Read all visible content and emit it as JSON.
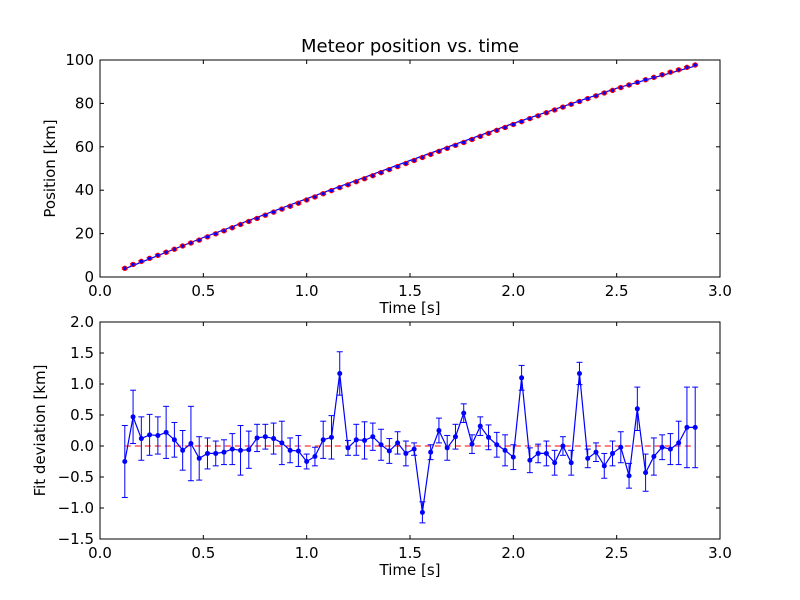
{
  "chart_data": [
    {
      "type": "scatter",
      "title": "Meteor position vs. time",
      "xlabel": "Time [s]",
      "ylabel": "Position [km]",
      "xlim": [
        0.0,
        3.0
      ],
      "ylim": [
        0,
        100
      ],
      "xticks": [
        "0.0",
        "0.5",
        "1.0",
        "1.5",
        "2.0",
        "2.5",
        "3.0"
      ],
      "yticks": [
        "0",
        "20",
        "40",
        "60",
        "80",
        "100"
      ],
      "grid": false,
      "legend": "none",
      "colors": {
        "data": "#ff0000",
        "fit": "#0000ff",
        "data_marker": "#0000ff"
      },
      "series": [
        {
          "kind": "data-with-errorbars",
          "x": [
            0.12,
            0.16,
            0.2,
            0.24,
            0.28,
            0.32,
            0.36,
            0.4,
            0.44,
            0.48,
            0.52,
            0.56,
            0.6,
            0.64,
            0.68,
            0.72,
            0.76,
            0.8,
            0.84,
            0.88,
            0.92,
            0.96,
            1.0,
            1.04,
            1.08,
            1.12,
            1.16,
            1.2,
            1.24,
            1.28,
            1.32,
            1.36,
            1.4,
            1.44,
            1.48,
            1.52,
            1.56,
            1.6,
            1.64,
            1.68,
            1.72,
            1.76,
            1.8,
            1.84,
            1.88,
            1.92,
            1.96,
            2.0,
            2.04,
            2.08,
            2.12,
            2.16,
            2.2,
            2.24,
            2.28,
            2.32,
            2.36,
            2.4,
            2.44,
            2.48,
            2.52,
            2.56,
            2.6,
            2.64,
            2.68,
            2.72,
            2.76,
            2.8,
            2.84,
            2.88
          ],
          "y": [
            4.0,
            5.8,
            7.2,
            8.6,
            10.0,
            11.4,
            12.8,
            14.3,
            15.7,
            17.0,
            18.5,
            19.9,
            21.3,
            22.7,
            24.2,
            25.6,
            27.0,
            28.5,
            29.9,
            31.3,
            32.6,
            34.0,
            35.5,
            36.9,
            38.4,
            39.8,
            41.2,
            42.5,
            43.9,
            45.3,
            46.7,
            48.1,
            49.5,
            50.9,
            52.3,
            53.7,
            55.1,
            56.5,
            57.9,
            59.3,
            60.7,
            62.0,
            63.4,
            64.8,
            66.2,
            67.6,
            68.9,
            70.3,
            71.6,
            73.0,
            74.3,
            75.7,
            77.0,
            78.3,
            79.6,
            80.9,
            82.2,
            83.5,
            84.8,
            86.0,
            87.3,
            88.5,
            89.7,
            90.9,
            92.0,
            93.2,
            94.4,
            95.5,
            96.6,
            97.7
          ],
          "yerr": 0.4
        },
        {
          "kind": "fit-line",
          "x": [
            0.12,
            0.5,
            1.0,
            1.5,
            2.0,
            2.5,
            2.88
          ],
          "y": [
            3.8,
            18.2,
            36.1,
            53.7,
            70.8,
            87.0,
            97.2
          ]
        }
      ]
    },
    {
      "type": "line",
      "title": "",
      "xlabel": "Time [s]",
      "ylabel": "Fit deviation [km]",
      "xlim": [
        0.0,
        3.0
      ],
      "ylim": [
        -1.5,
        2.0
      ],
      "xticks": [
        "0.0",
        "0.5",
        "1.0",
        "1.5",
        "2.0",
        "2.5",
        "3.0"
      ],
      "yticks": [
        "−1.5",
        "−1.0",
        "−0.5",
        "0.0",
        "0.5",
        "1.0",
        "1.5",
        "2.0"
      ],
      "grid": false,
      "legend": "none",
      "colors": {
        "series": "#0000ff",
        "zero_line": "#ff0000"
      },
      "zero_line": {
        "y": 0.0,
        "style": "dashed"
      },
      "series": [
        {
          "x": [
            0.12,
            0.16,
            0.2,
            0.24,
            0.28,
            0.32,
            0.36,
            0.4,
            0.44,
            0.48,
            0.52,
            0.56,
            0.6,
            0.64,
            0.68,
            0.72,
            0.76,
            0.8,
            0.84,
            0.88,
            0.92,
            0.96,
            1.0,
            1.04,
            1.08,
            1.12,
            1.16,
            1.2,
            1.24,
            1.28,
            1.32,
            1.36,
            1.4,
            1.44,
            1.48,
            1.52,
            1.56,
            1.6,
            1.64,
            1.68,
            1.72,
            1.76,
            1.8,
            1.84,
            1.88,
            1.92,
            1.96,
            2.0,
            2.04,
            2.08,
            2.12,
            2.16,
            2.2,
            2.24,
            2.28,
            2.32,
            2.36,
            2.4,
            2.44,
            2.48,
            2.52,
            2.56,
            2.6,
            2.64,
            2.68,
            2.72,
            2.76,
            2.8,
            2.84,
            2.88
          ],
          "y": [
            -0.25,
            0.47,
            0.12,
            0.18,
            0.17,
            0.22,
            0.1,
            -0.07,
            0.04,
            -0.2,
            -0.12,
            -0.12,
            -0.1,
            -0.05,
            -0.07,
            -0.06,
            0.13,
            0.15,
            0.12,
            0.05,
            -0.07,
            -0.08,
            -0.25,
            -0.17,
            0.1,
            0.14,
            1.17,
            -0.03,
            0.1,
            0.09,
            0.15,
            0.02,
            -0.08,
            0.05,
            -0.12,
            -0.05,
            -1.07,
            -0.1,
            0.25,
            -0.03,
            0.15,
            0.53,
            0.03,
            0.32,
            0.14,
            0.02,
            -0.07,
            -0.18,
            1.1,
            -0.23,
            -0.12,
            -0.12,
            -0.27,
            0.0,
            -0.27,
            1.17,
            -0.2,
            -0.1,
            -0.32,
            -0.12,
            -0.02,
            -0.48,
            0.6,
            -0.43,
            -0.17,
            -0.02,
            -0.05,
            0.05,
            0.3,
            0.3
          ],
          "yerr": [
            0.58,
            0.43,
            0.35,
            0.33,
            0.3,
            0.42,
            0.28,
            0.32,
            0.6,
            0.35,
            0.25,
            0.2,
            0.2,
            0.25,
            0.4,
            0.3,
            0.22,
            0.2,
            0.25,
            0.35,
            0.2,
            0.25,
            0.12,
            0.15,
            0.3,
            0.35,
            0.35,
            0.12,
            0.25,
            0.3,
            0.22,
            0.25,
            0.2,
            0.18,
            0.2,
            0.1,
            0.17,
            0.12,
            0.2,
            0.2,
            0.2,
            0.15,
            0.15,
            0.15,
            0.2,
            0.2,
            0.25,
            0.2,
            0.2,
            0.2,
            0.15,
            0.2,
            0.2,
            0.15,
            0.2,
            0.18,
            0.15,
            0.15,
            0.2,
            0.2,
            0.25,
            0.2,
            0.35,
            0.3,
            0.3,
            0.2,
            0.25,
            0.35,
            0.65,
            0.65
          ]
        }
      ]
    }
  ]
}
